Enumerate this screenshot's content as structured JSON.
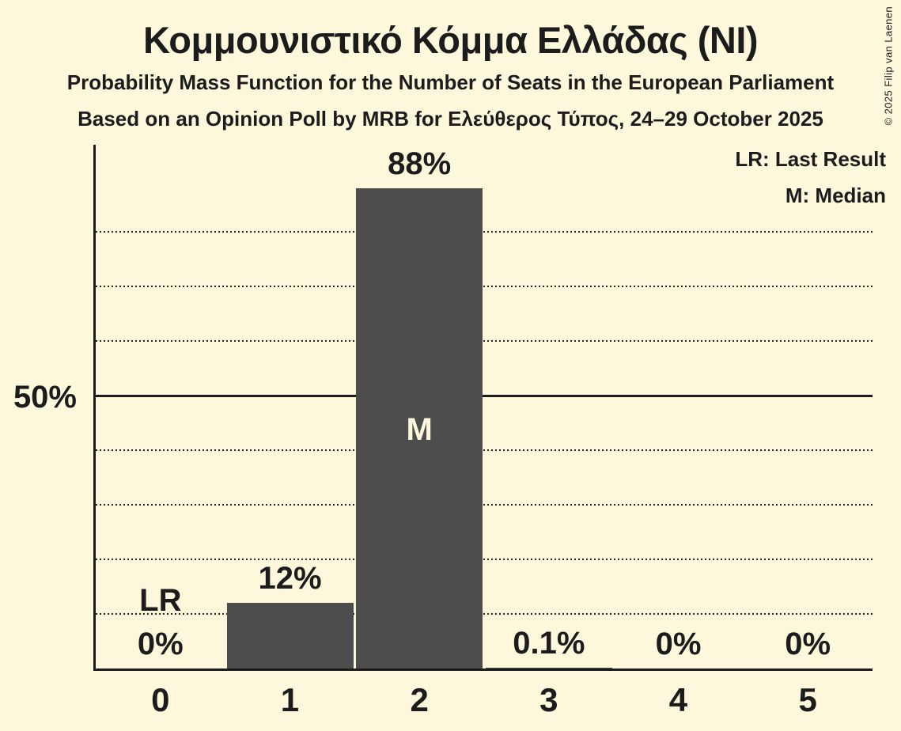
{
  "header": {
    "title": "Κομμουνιστικό Κόμμα Ελλάδας (NI)",
    "subtitle_line1": "Probability Mass Function for the Number of Seats in the European Parliament",
    "subtitle_line2": "Based on an Opinion Poll by MRB for Ελεύθερος Τύπος, 24–29 October 2025"
  },
  "legend": {
    "items": [
      {
        "label": "LR: Last Result"
      },
      {
        "label": "M: Median"
      }
    ]
  },
  "copyright": "© 2025 Filip van Laenen",
  "colors": {
    "background": "#fdf7dc",
    "bar": "#4d4d4d",
    "text": "#1c1c1c",
    "bar_annotation_text": "#fdf7dc"
  },
  "chart_data": {
    "type": "bar",
    "title": "Κομμουνιστικό Κόμμα Ελλάδας (NI)",
    "categories": [
      "0",
      "1",
      "2",
      "3",
      "4",
      "5"
    ],
    "values": [
      0,
      12,
      88,
      0.1,
      0,
      0
    ],
    "value_labels": [
      "0%",
      "12%",
      "88%",
      "0.1%",
      "0%",
      "0%"
    ],
    "annotations": [
      {
        "category_index": 0,
        "text": "LR",
        "placement": "above-value-label"
      },
      {
        "category_index": 2,
        "text": "M",
        "placement": "center-of-bar"
      }
    ],
    "y_axis": {
      "max": 96,
      "tick_value": 50,
      "tick_label": "50%",
      "solid_line_at": 50,
      "dotted_gridlines_at": [
        10,
        20,
        30,
        40,
        60,
        70,
        80
      ]
    },
    "grid": "horizontal-dotted",
    "legend_position": "top-right",
    "legend_entries": [
      "LR: Last Result",
      "M: Median"
    ]
  }
}
